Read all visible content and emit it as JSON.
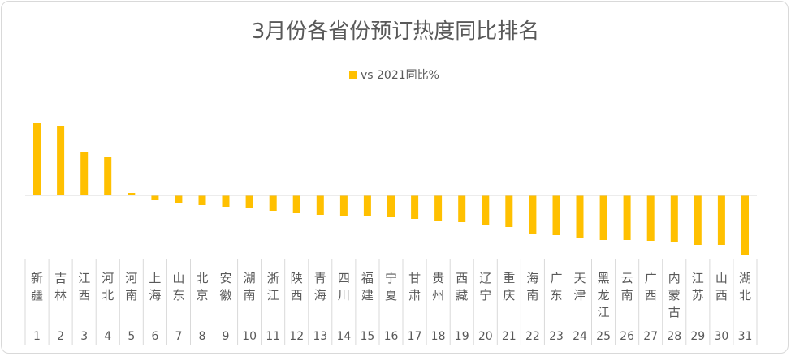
{
  "chart_data": {
    "type": "bar",
    "title": "3月份各省份预订热度同比排名",
    "series": [
      {
        "name": "vs 2021同比%",
        "color": "#FFC000",
        "values": [
          89,
          86,
          54,
          47,
          3,
          -6,
          -9,
          -12,
          -14,
          -16,
          -19,
          -22,
          -24,
          -25,
          -25,
          -27,
          -29,
          -31,
          -33,
          -36,
          -39,
          -47,
          -49,
          -52,
          -55,
          -55,
          -56,
          -58,
          -61,
          -61,
          -73
        ]
      }
    ],
    "categories": [
      "新疆",
      "吉林",
      "江西",
      "河北",
      "河南",
      "上海",
      "山东",
      "北京",
      "安徽",
      "湖南",
      "浙江",
      "陕西",
      "青海",
      "四川",
      "福建",
      "宁夏",
      "甘肃",
      "贵州",
      "西藏",
      "辽宁",
      "重庆",
      "海南",
      "广东",
      "天津",
      "黑龙江",
      "云南",
      "广西",
      "内蒙古",
      "江苏",
      "山西",
      "湖北"
    ],
    "ranks": [
      "1",
      "2",
      "3",
      "4",
      "5",
      "6",
      "7",
      "8",
      "9",
      "10",
      "11",
      "12",
      "13",
      "14",
      "15",
      "16",
      "17",
      "18",
      "19",
      "20",
      "21",
      "22",
      "23",
      "24",
      "25",
      "26",
      "27",
      "28",
      "29",
      "30",
      "31"
    ],
    "ylim": [
      -80,
      100
    ],
    "xlabel": "",
    "ylabel": "",
    "grid": false,
    "legend_position": "top-center"
  }
}
